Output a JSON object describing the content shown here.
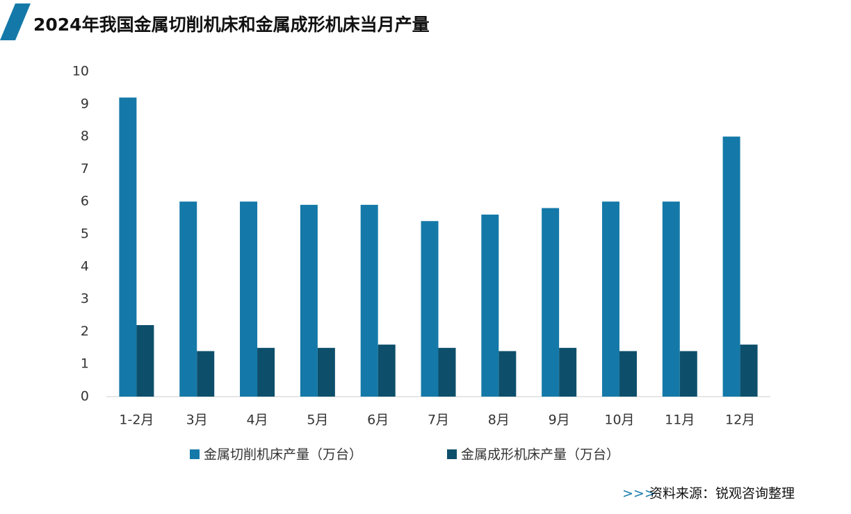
{
  "chart_data": {
    "type": "bar",
    "title": "2024年我国金属切削机床和金属成形机床当月产量",
    "categories": [
      "1-2月",
      "3月",
      "4月",
      "5月",
      "6月",
      "7月",
      "8月",
      "9月",
      "10月",
      "11月",
      "12月"
    ],
    "series": [
      {
        "name": "金属切削机床产量（万台）",
        "color": "#1479a8",
        "values": [
          9.2,
          6.0,
          6.0,
          5.9,
          5.9,
          5.4,
          5.6,
          5.8,
          6.0,
          6.0,
          8.0
        ]
      },
      {
        "name": "金属成形机床产量（万台）",
        "color": "#0d4f6b",
        "values": [
          2.2,
          1.4,
          1.5,
          1.5,
          1.6,
          1.5,
          1.4,
          1.5,
          1.4,
          1.4,
          1.6
        ]
      }
    ],
    "ylim": [
      0,
      10
    ],
    "yticks": [
      0,
      1,
      2,
      3,
      4,
      5,
      6,
      7,
      8,
      9,
      10
    ],
    "grid": false,
    "legend": "bottom",
    "source_marker": ">>>",
    "source": "资料来源：锐观咨询整理"
  }
}
